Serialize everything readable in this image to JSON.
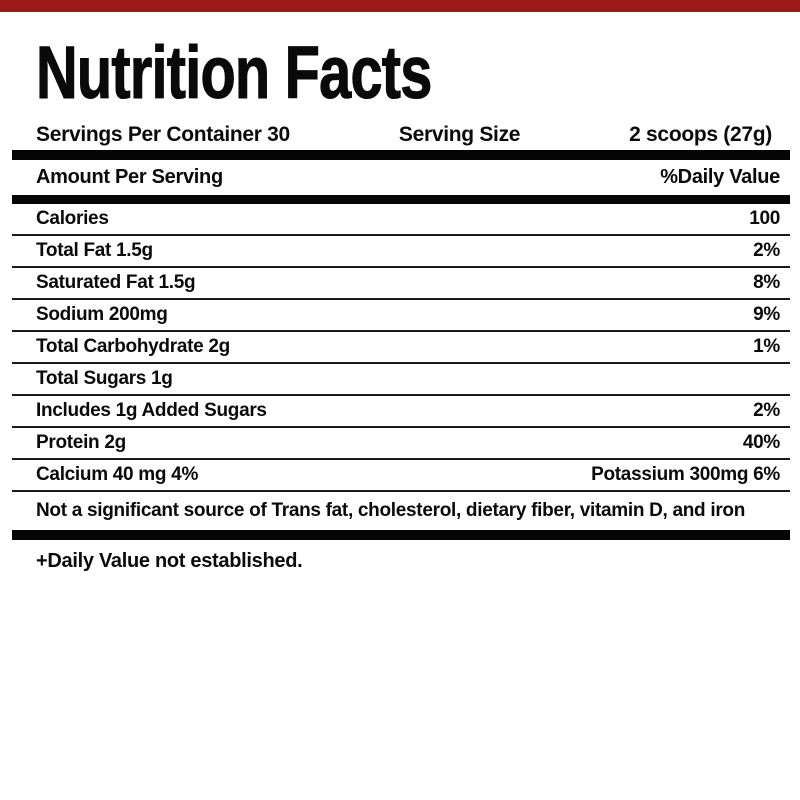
{
  "page": {
    "background_color": "#ffffff",
    "text_color": "#0a0a0a",
    "accent_bar_color": "#9b1b1b"
  },
  "title": "Nutrition Facts",
  "serving_info": {
    "servings_per_container": "Servings Per Container 30",
    "serving_size_label": "Serving Size",
    "serving_size_value": "2 scoops (27g)"
  },
  "table": {
    "header": {
      "left": "Amount Per Serving",
      "right": "%Daily Value"
    },
    "rows": [
      {
        "label": "Calories",
        "value": "100"
      },
      {
        "label": "Total Fat 1.5g",
        "value": "2%"
      },
      {
        "label": "Saturated Fat 1.5g",
        "value": "8%"
      },
      {
        "label": "Sodium 200mg",
        "value": "9%"
      },
      {
        "label": "Total Carbohydrate 2g",
        "value": "1%"
      },
      {
        "label": "Total Sugars 1g",
        "value": ""
      },
      {
        "label": "Includes 1g Added Sugars",
        "value": "2%"
      },
      {
        "label": "Protein 2g",
        "value": "40%"
      },
      {
        "label": "Calcium 40 mg 4%",
        "value": "Potassium 300mg 6%"
      }
    ],
    "insignificant_note": "Not a significant source of Trans fat, cholesterol, dietary fiber, vitamin D, and iron"
  },
  "footnotes": {
    "daily_value_note": "+Daily Value not established."
  }
}
